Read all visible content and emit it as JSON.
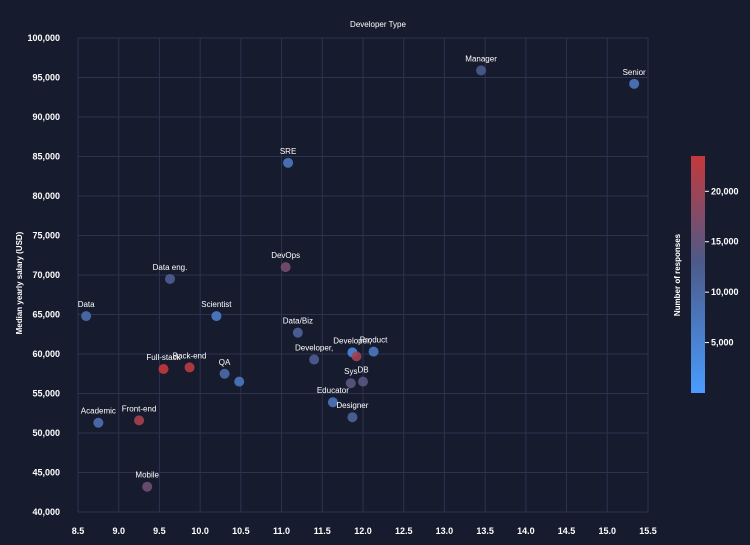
{
  "chart_data": {
    "type": "scatter",
    "title": "Developer Type",
    "xlabel": "",
    "ylabel": "Median yearly salary (USD)",
    "xlim": [
      8.5,
      15.5
    ],
    "ylim": [
      40000,
      100000
    ],
    "x_ticks": [
      8.5,
      9.0,
      9.5,
      10.0,
      10.5,
      11.0,
      11.5,
      12.0,
      12.5,
      13.0,
      13.5,
      14.0,
      14.5,
      15.0,
      15.5
    ],
    "x_tick_labels": [
      "8.5",
      "9.0",
      "9.5",
      "10.0",
      "10.5",
      "11.0",
      "11.5",
      "12.0",
      "12.5",
      "13.0",
      "13.5",
      "14.0",
      "14.5",
      "15.0",
      "15.5"
    ],
    "y_ticks": [
      40000,
      45000,
      50000,
      55000,
      60000,
      65000,
      70000,
      75000,
      80000,
      85000,
      90000,
      95000,
      100000
    ],
    "y_tick_labels": [
      "40,000",
      "45,000",
      "50,000",
      "55,000",
      "60,000",
      "65,000",
      "70,000",
      "75,000",
      "80,000",
      "85,000",
      "90,000",
      "95,000",
      "100,000"
    ],
    "points": [
      {
        "label": "Data",
        "x": 8.6,
        "y": 64800,
        "responses": 9000
      },
      {
        "label": "Academic",
        "x": 8.75,
        "y": 51300,
        "responses": 8500
      },
      {
        "label": "Front-end",
        "x": 9.25,
        "y": 51600,
        "responses": 21000
      },
      {
        "label": "Mobile",
        "x": 9.35,
        "y": 43200,
        "responses": 16000
      },
      {
        "label": "Full-stack",
        "x": 9.55,
        "y": 58100,
        "responses": 23500
      },
      {
        "label": "Back-end",
        "x": 9.87,
        "y": 58300,
        "responses": 22500
      },
      {
        "label": "Data eng.",
        "x": 9.63,
        "y": 69500,
        "responses": 12000
      },
      {
        "label": "Scientist",
        "x": 10.2,
        "y": 64800,
        "responses": 6000
      },
      {
        "label": "QA",
        "x": 10.3,
        "y": 57500,
        "responses": 9500
      },
      {
        "label": "",
        "x": 10.48,
        "y": 56500,
        "responses": 7000
      },
      {
        "label": "SRE",
        "x": 11.08,
        "y": 84200,
        "responses": 7000
      },
      {
        "label": "DevOps",
        "x": 11.05,
        "y": 71000,
        "responses": 16500
      },
      {
        "label": "Data/Biz",
        "x": 11.2,
        "y": 62700,
        "responses": 11000
      },
      {
        "label": "Developer,",
        "x": 11.4,
        "y": 59300,
        "responses": 12000
      },
      {
        "label": "Developer,",
        "x": 11.87,
        "y": 60200,
        "responses": 4000
      },
      {
        "label": "",
        "x": 11.92,
        "y": 59700,
        "responses": 20000
      },
      {
        "label": "Product",
        "x": 12.13,
        "y": 60300,
        "responses": 7000
      },
      {
        "label": "Sys",
        "x": 11.85,
        "y": 56300,
        "responses": 14500
      },
      {
        "label": "DB",
        "x": 12.0,
        "y": 56500,
        "responses": 14000
      },
      {
        "label": "Educator",
        "x": 11.63,
        "y": 53900,
        "responses": 7500
      },
      {
        "label": "Designer",
        "x": 11.87,
        "y": 52000,
        "responses": 11000
      },
      {
        "label": "Manager",
        "x": 13.45,
        "y": 95900,
        "responses": 12500
      },
      {
        "label": "Senior",
        "x": 15.33,
        "y": 94200,
        "responses": 7000
      }
    ],
    "colorbar": {
      "title": "Number of responses",
      "min": 0,
      "max": 23500,
      "ticks": [
        5000,
        10000,
        15000,
        20000
      ],
      "tick_labels": [
        "5,000",
        "10,000",
        "15,000",
        "20,000"
      ],
      "low_color": "#4a9cff",
      "mid_color": "#4c5a8a",
      "high_color": "#c4393c"
    }
  }
}
